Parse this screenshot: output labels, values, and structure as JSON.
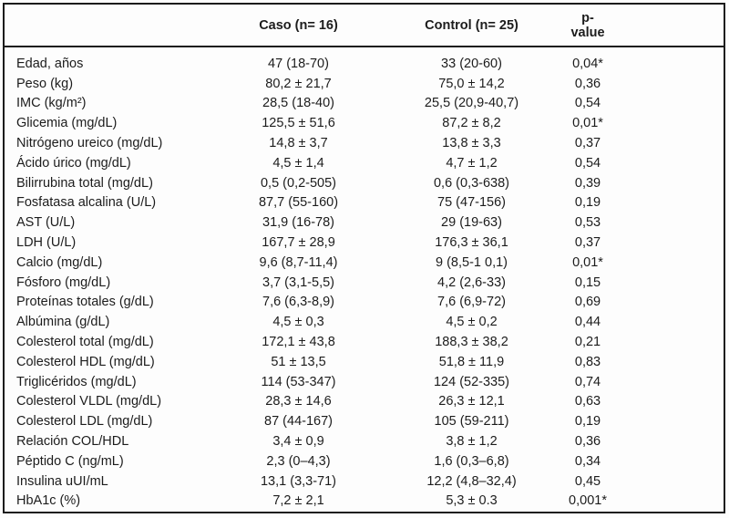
{
  "table": {
    "header": {
      "label": "",
      "caso": "Caso (n= 16)",
      "control": "Control (n= 25)",
      "p_value": "p-value"
    },
    "rows": [
      {
        "label": "Edad, años",
        "caso": "47 (18-70)",
        "control": "33 (20-60)",
        "p": "0,04*"
      },
      {
        "label": "Peso (kg)",
        "caso": "80,2 ± 21,7",
        "control": "75,0 ± 14,2",
        "p": "0,36"
      },
      {
        "label": "IMC (kg/m²)",
        "caso": "28,5 (18-40)",
        "control": "25,5 (20,9-40,7)",
        "p": "0,54"
      },
      {
        "label": "Glicemia (mg/dL)",
        "caso": "125,5 ± 51,6",
        "control": "87,2 ± 8,2",
        "p": "0,01*"
      },
      {
        "label": "Nitrógeno ureico (mg/dL)",
        "caso": "14,8 ± 3,7",
        "control": "13,8 ± 3,3",
        "p": "0,37"
      },
      {
        "label": "Ácido úrico (mg/dL)",
        "caso": "4,5 ± 1,4",
        "control": "4,7 ± 1,2",
        "p": "0,54"
      },
      {
        "label": "Bilirrubina total (mg/dL)",
        "caso": "0,5 (0,2-505)",
        "control": "0,6 (0,3-638)",
        "p": "0,39"
      },
      {
        "label": "Fosfatasa alcalina (U/L)",
        "caso": "87,7 (55-160)",
        "control": "75 (47-156)",
        "p": "0,19"
      },
      {
        "label": "AST (U/L)",
        "caso": "31,9 (16-78)",
        "control": "29 (19-63)",
        "p": "0,53"
      },
      {
        "label": "LDH (U/L)",
        "caso": "167,7 ± 28,9",
        "control": "176,3 ± 36,1",
        "p": "0,37"
      },
      {
        "label": "Calcio (mg/dL)",
        "caso": "9,6 (8,7-11,4)",
        "control": "9 (8,5-1 0,1)",
        "p": "0,01*"
      },
      {
        "label": "Fósforo (mg/dL)",
        "caso": "3,7 (3,1-5,5)",
        "control": "4,2 (2,6-33)",
        "p": "0,15"
      },
      {
        "label": "Proteínas totales (g/dL)",
        "caso": "7,6 (6,3-8,9)",
        "control": "7,6 (6,9-72)",
        "p": "0,69"
      },
      {
        "label": "Albúmina (g/dL)",
        "caso": "4,5 ± 0,3",
        "control": "4,5 ± 0,2",
        "p": "0,44"
      },
      {
        "label": "Colesterol total (mg/dL)",
        "caso": "172,1 ± 43,8",
        "control": "188,3 ± 38,2",
        "p": "0,21"
      },
      {
        "label": "Colesterol HDL (mg/dL)",
        "caso": "51 ± 13,5",
        "control": "51,8 ± 11,9",
        "p": "0,83"
      },
      {
        "label": "Triglicéridos (mg/dL)",
        "caso": "114 (53-347)",
        "control": "124 (52-335)",
        "p": "0,74"
      },
      {
        "label": "Colesterol VLDL (mg/dL)",
        "caso": "28,3 ± 14,6",
        "control": "26,3 ± 12,1",
        "p": "0,63"
      },
      {
        "label": "Colesterol LDL (mg/dL)",
        "caso": "87 (44-167)",
        "control": "105 (59-211)",
        "p": "0,19"
      },
      {
        "label": "Relación COL/HDL",
        "caso": "3,4 ± 0,9",
        "control": "3,8 ± 1,2",
        "p": "0,36"
      },
      {
        "label": "Péptido C (ng/mL)",
        "caso": "2,3 (0–4,3)",
        "control": "1,6 (0,3–6,8)",
        "p": "0,34"
      },
      {
        "label": "Insulina uUI/mL",
        "caso": "13,1 (3,3-71)",
        "control": "12,2 (4,8–32,4)",
        "p": "0,45"
      },
      {
        "label": "HbA1c (%)",
        "caso": "7,2 ± 2,1",
        "control": "5,3 ± 0.3",
        "p": "0,001*"
      }
    ]
  }
}
